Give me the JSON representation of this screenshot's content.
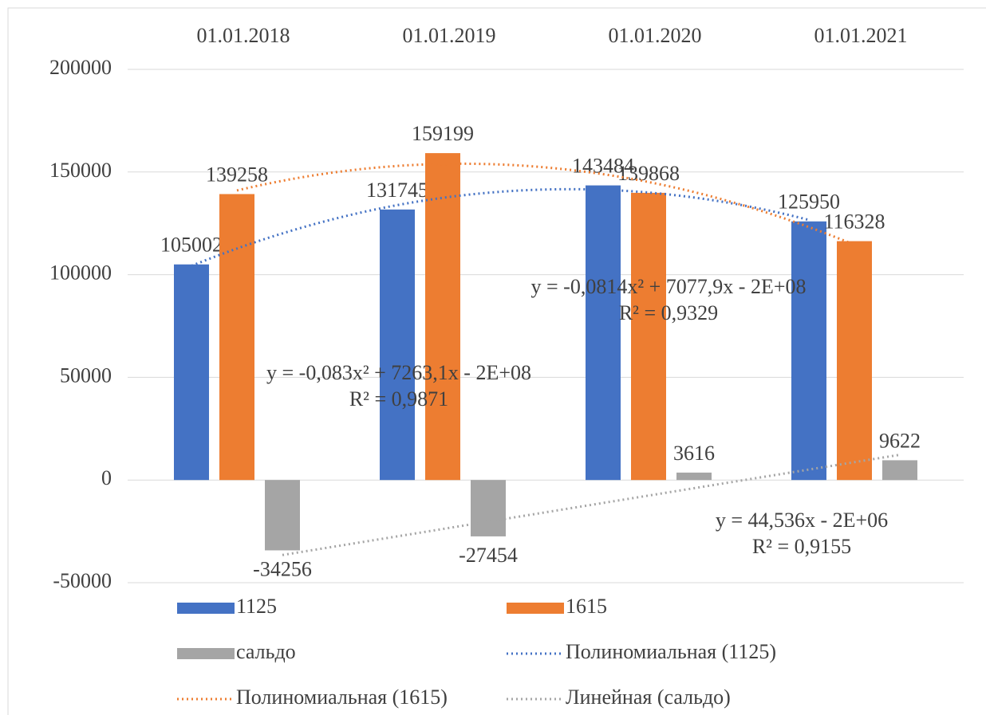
{
  "chart_data": {
    "type": "bar",
    "categories": [
      "01.01.2018",
      "01.01.2019",
      "01.01.2020",
      "01.01.2021"
    ],
    "series": [
      {
        "name": "1125",
        "color": "#4472c4",
        "values": [
          105002,
          131745,
          143484,
          125950
        ]
      },
      {
        "name": "1615",
        "color": "#ed7d31",
        "values": [
          139258,
          159199,
          139868,
          116328
        ]
      },
      {
        "name": "сальдо",
        "color": "#a5a5a5",
        "values": [
          -34256,
          -27454,
          3616,
          9622
        ]
      }
    ],
    "trendlines": [
      {
        "name": "Полиномиальная (1125)",
        "series": 0,
        "kind": "polynomial",
        "degree": 2,
        "color": "#4472c4",
        "equation": "y = -0,083x² + 7263,1x - 2E+08",
        "r2": "R² = 0,9871"
      },
      {
        "name": "Полиномиальная (1615)",
        "series": 1,
        "kind": "polynomial",
        "degree": 2,
        "color": "#ed7d31",
        "equation": "y = -0,0814x² + 7077,9x - 2E+08",
        "r2": "R² = 0,9329"
      },
      {
        "name": "Линейная (сальдо)",
        "series": 2,
        "kind": "linear",
        "degree": 1,
        "color": "#a5a5a5",
        "equation": "y = 44,536x - 2E+06",
        "r2": "R² = 0,9155"
      }
    ],
    "ylim": [
      -50000,
      200000
    ],
    "yticks": [
      -50000,
      0,
      50000,
      100000,
      150000,
      200000
    ],
    "grid": true,
    "legend": "bottom"
  }
}
